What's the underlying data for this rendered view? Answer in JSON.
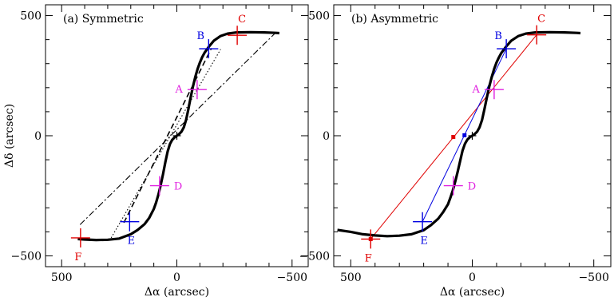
{
  "chart_data": [
    {
      "type": "line",
      "title": "(a) Symmetric",
      "xlabel": "Δα (arcsec)",
      "ylabel": "Δδ (arcsec)",
      "xlim": [
        570,
        -570
      ],
      "ylim": [
        -545,
        545
      ],
      "x_reversed": true,
      "xticks": [
        500,
        0,
        -500
      ],
      "yticks": [
        500,
        0,
        -500
      ],
      "xtick_labels": [
        "500",
        "0",
        "−500"
      ],
      "ytick_labels": [
        "500",
        "0",
        "−500"
      ],
      "curve": {
        "x": [
          430,
          400,
          350,
          300,
          250,
          200,
          170,
          140,
          120,
          100,
          90,
          80,
          70,
          60,
          50,
          40,
          30,
          20,
          10,
          0,
          -10,
          -20,
          -30,
          -40,
          -50,
          -60,
          -70,
          -80,
          -90,
          -100,
          -110,
          -120,
          -140,
          -160,
          -190,
          -220,
          -260,
          -320,
          -380,
          -430,
          -445
        ],
        "y": [
          -430,
          -432,
          -434,
          -433,
          -428,
          -410,
          -392,
          -368,
          -342,
          -305,
          -278,
          -245,
          -205,
          -160,
          -110,
          -65,
          -35,
          -17,
          -7,
          0,
          7,
          17,
          35,
          65,
          110,
          160,
          205,
          245,
          278,
          305,
          327,
          345,
          372,
          395,
          415,
          425,
          430,
          431,
          430,
          428,
          427
        ]
      },
      "points": [
        {
          "label": "A",
          "x": -88,
          "y": 192,
          "color": "#e020e0"
        },
        {
          "label": "B",
          "x": -138,
          "y": 362,
          "color": "#0000e0"
        },
        {
          "label": "C",
          "x": -262,
          "y": 418,
          "color": "#e00000"
        },
        {
          "label": "D",
          "x": 75,
          "y": -208,
          "color": "#e020e0"
        },
        {
          "label": "E",
          "x": 205,
          "y": -358,
          "color": "#0000e0"
        },
        {
          "label": "F",
          "x": 418,
          "y": -425,
          "color": "#e00000"
        }
      ],
      "reference_lines": [
        {
          "style": "dashed",
          "x": [
            230,
            -150
          ],
          "y": [
            -362,
            364
          ]
        },
        {
          "style": "dotted",
          "x": [
            285,
            -190
          ],
          "y": [
            -425,
            360
          ]
        },
        {
          "style": "dashdot",
          "x": [
            420,
            -430
          ],
          "y": [
            -370,
            430
          ]
        }
      ]
    },
    {
      "type": "line",
      "title": "(b) Asymmetric",
      "xlabel": "Δα (arcsec)",
      "ylabel": "",
      "xlim": [
        570,
        -570
      ],
      "ylim": [
        -545,
        545
      ],
      "x_reversed": true,
      "xticks": [
        500,
        0,
        -500
      ],
      "yticks": [
        500,
        0,
        -500
      ],
      "xtick_labels": [
        "500",
        "0",
        "−500"
      ],
      "ytick_labels": [
        "500",
        "0",
        "−500"
      ],
      "curve": {
        "x": [
          555,
          500,
          450,
          400,
          350,
          300,
          250,
          200,
          170,
          140,
          120,
          100,
          90,
          80,
          70,
          60,
          50,
          40,
          30,
          20,
          10,
          0,
          -10,
          -20,
          -30,
          -40,
          -50,
          -60,
          -70,
          -80,
          -90,
          -100,
          -110,
          -120,
          -140,
          -160,
          -190,
          -220,
          -260,
          -320,
          -380,
          -430,
          -445
        ],
        "y": [
          -392,
          -400,
          -410,
          -415,
          -418,
          -416,
          -410,
          -393,
          -372,
          -345,
          -318,
          -285,
          -258,
          -228,
          -190,
          -150,
          -105,
          -62,
          -33,
          -16,
          -6,
          0,
          7,
          17,
          35,
          65,
          110,
          160,
          205,
          245,
          278,
          305,
          327,
          345,
          372,
          395,
          415,
          425,
          430,
          431,
          430,
          428,
          427
        ]
      },
      "points": [
        {
          "label": "A",
          "x": -90,
          "y": 192,
          "color": "#e020e0"
        },
        {
          "label": "B",
          "x": -140,
          "y": 362,
          "color": "#0000e0"
        },
        {
          "label": "C",
          "x": -265,
          "y": 420,
          "color": "#e00000"
        },
        {
          "label": "D",
          "x": 78,
          "y": -208,
          "color": "#e020e0"
        },
        {
          "label": "E",
          "x": 205,
          "y": -358,
          "color": "#0000e0"
        },
        {
          "label": "F",
          "x": 418,
          "y": -430,
          "color": "#e00000"
        }
      ],
      "chords": [
        {
          "color": "#e00000",
          "x": [
            418,
            -265
          ],
          "y": [
            -430,
            420
          ],
          "midpoint": [
            78,
            -5
          ]
        },
        {
          "color": "#0000e0",
          "x": [
            205,
            -140
          ],
          "y": [
            -358,
            362
          ],
          "midpoint": [
            32,
            2
          ]
        }
      ]
    }
  ]
}
